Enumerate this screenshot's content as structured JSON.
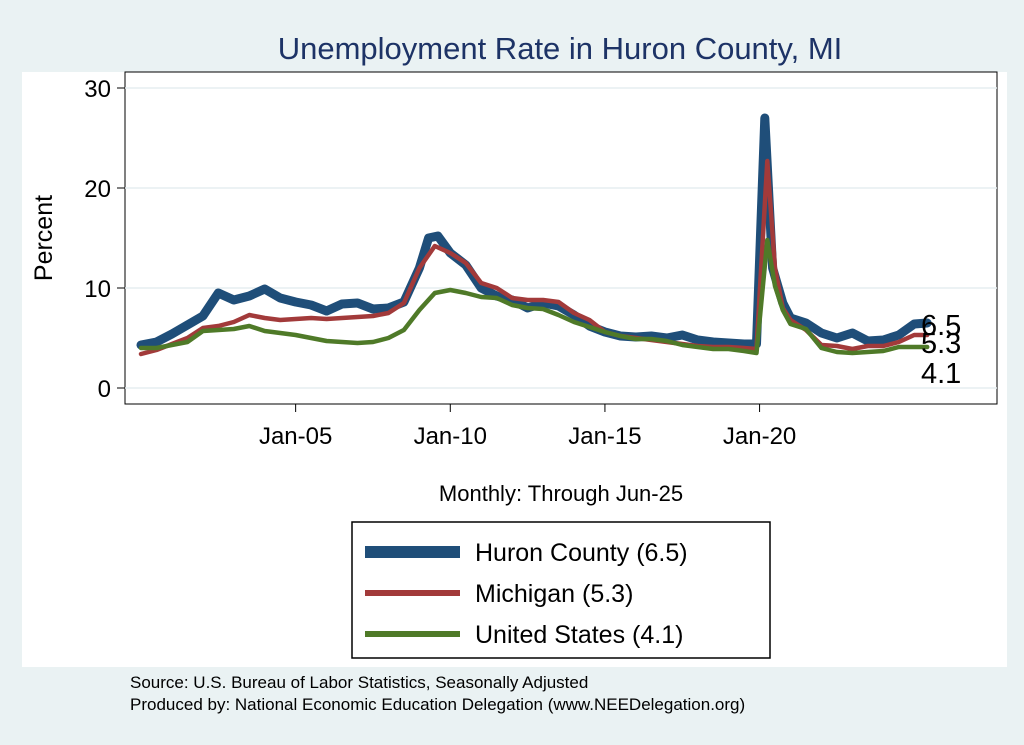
{
  "chart_data": {
    "type": "line",
    "title": "Unemployment Rate in Huron  County, MI",
    "ylabel": "Percent",
    "xlabel": "Monthly: Through Jun-25",
    "ylim": [
      0,
      30
    ],
    "yticks": [
      0,
      10,
      20,
      30
    ],
    "xlim": [
      2000.0,
      2028.0
    ],
    "xticks": [
      {
        "value": 2005.0,
        "label": "Jan-05"
      },
      {
        "value": 2010.0,
        "label": "Jan-10"
      },
      {
        "value": 2015.0,
        "label": "Jan-15"
      },
      {
        "value": 2020.0,
        "label": "Jan-20"
      }
    ],
    "grid": true,
    "legend_position": "bottom",
    "series": [
      {
        "name": "Huron  County",
        "legend_label": "Huron  County (6.5)",
        "end_label": "6.5",
        "color": "#1f4e79",
        "points": [
          [
            2000.0,
            4.3
          ],
          [
            2000.5,
            4.6
          ],
          [
            2001.0,
            5.4
          ],
          [
            2001.5,
            6.3
          ],
          [
            2002.0,
            7.2
          ],
          [
            2002.5,
            9.5
          ],
          [
            2003.0,
            8.8
          ],
          [
            2003.5,
            9.2
          ],
          [
            2004.0,
            9.9
          ],
          [
            2004.5,
            9.0
          ],
          [
            2005.0,
            8.6
          ],
          [
            2005.5,
            8.3
          ],
          [
            2006.0,
            7.7
          ],
          [
            2006.5,
            8.4
          ],
          [
            2007.0,
            8.5
          ],
          [
            2007.5,
            7.9
          ],
          [
            2008.0,
            8.0
          ],
          [
            2008.5,
            8.6
          ],
          [
            2009.0,
            12.0
          ],
          [
            2009.3,
            15.0
          ],
          [
            2009.6,
            15.2
          ],
          [
            2010.0,
            13.5
          ],
          [
            2010.5,
            12.3
          ],
          [
            2011.0,
            10.0
          ],
          [
            2011.5,
            9.2
          ],
          [
            2012.0,
            8.8
          ],
          [
            2012.5,
            8.0
          ],
          [
            2013.0,
            8.5
          ],
          [
            2013.5,
            8.2
          ],
          [
            2014.0,
            7.3
          ],
          [
            2014.5,
            6.2
          ],
          [
            2015.0,
            5.6
          ],
          [
            2015.5,
            5.2
          ],
          [
            2016.0,
            5.1
          ],
          [
            2016.5,
            5.2
          ],
          [
            2017.0,
            5.0
          ],
          [
            2017.5,
            5.3
          ],
          [
            2018.0,
            4.8
          ],
          [
            2018.5,
            4.6
          ],
          [
            2019.0,
            4.5
          ],
          [
            2019.5,
            4.4
          ],
          [
            2019.9,
            4.4
          ],
          [
            2020.17,
            27.0
          ],
          [
            2020.42,
            12.0
          ],
          [
            2020.75,
            8.5
          ],
          [
            2021.0,
            7.0
          ],
          [
            2021.5,
            6.5
          ],
          [
            2022.0,
            5.5
          ],
          [
            2022.5,
            5.0
          ],
          [
            2023.0,
            5.5
          ],
          [
            2023.5,
            4.7
          ],
          [
            2024.0,
            4.8
          ],
          [
            2024.5,
            5.3
          ],
          [
            2025.0,
            6.4
          ],
          [
            2025.42,
            6.5
          ]
        ]
      },
      {
        "name": "Michigan",
        "legend_label": "Michigan (5.3)",
        "end_label": "5.3",
        "color": "#a23a3a",
        "points": [
          [
            2000.0,
            3.4
          ],
          [
            2000.5,
            3.8
          ],
          [
            2001.0,
            4.4
          ],
          [
            2001.5,
            5.0
          ],
          [
            2002.0,
            6.0
          ],
          [
            2002.5,
            6.2
          ],
          [
            2003.0,
            6.6
          ],
          [
            2003.5,
            7.3
          ],
          [
            2004.0,
            7.0
          ],
          [
            2004.5,
            6.8
          ],
          [
            2005.0,
            6.9
          ],
          [
            2005.5,
            7.0
          ],
          [
            2006.0,
            6.9
          ],
          [
            2006.5,
            7.0
          ],
          [
            2007.0,
            7.1
          ],
          [
            2007.5,
            7.2
          ],
          [
            2008.0,
            7.5
          ],
          [
            2008.5,
            8.5
          ],
          [
            2009.0,
            12.0
          ],
          [
            2009.5,
            14.2
          ],
          [
            2010.0,
            13.5
          ],
          [
            2010.5,
            12.5
          ],
          [
            2011.0,
            10.5
          ],
          [
            2011.5,
            10.0
          ],
          [
            2012.0,
            9.0
          ],
          [
            2012.5,
            8.8
          ],
          [
            2013.0,
            8.8
          ],
          [
            2013.5,
            8.6
          ],
          [
            2014.0,
            7.5
          ],
          [
            2014.5,
            6.8
          ],
          [
            2015.0,
            5.6
          ],
          [
            2015.5,
            5.2
          ],
          [
            2016.0,
            5.0
          ],
          [
            2016.5,
            4.8
          ],
          [
            2017.0,
            4.6
          ],
          [
            2017.5,
            4.4
          ],
          [
            2018.0,
            4.2
          ],
          [
            2018.5,
            4.1
          ],
          [
            2019.0,
            4.1
          ],
          [
            2019.5,
            4.0
          ],
          [
            2019.9,
            3.9
          ],
          [
            2020.25,
            22.7
          ],
          [
            2020.5,
            12.0
          ],
          [
            2020.75,
            8.0
          ],
          [
            2021.0,
            6.8
          ],
          [
            2021.5,
            5.8
          ],
          [
            2022.0,
            4.3
          ],
          [
            2022.5,
            4.2
          ],
          [
            2023.0,
            3.9
          ],
          [
            2023.5,
            4.2
          ],
          [
            2024.0,
            4.2
          ],
          [
            2024.5,
            4.6
          ],
          [
            2025.0,
            5.3
          ],
          [
            2025.42,
            5.3
          ]
        ]
      },
      {
        "name": "United States",
        "legend_label": "United States (4.1)",
        "end_label": "4.1",
        "color": "#4f7a28",
        "points": [
          [
            2000.0,
            4.0
          ],
          [
            2000.5,
            4.0
          ],
          [
            2001.0,
            4.3
          ],
          [
            2001.5,
            4.6
          ],
          [
            2002.0,
            5.7
          ],
          [
            2002.5,
            5.8
          ],
          [
            2003.0,
            5.9
          ],
          [
            2003.5,
            6.2
          ],
          [
            2004.0,
            5.7
          ],
          [
            2004.5,
            5.5
          ],
          [
            2005.0,
            5.3
          ],
          [
            2005.5,
            5.0
          ],
          [
            2006.0,
            4.7
          ],
          [
            2006.5,
            4.6
          ],
          [
            2007.0,
            4.5
          ],
          [
            2007.5,
            4.6
          ],
          [
            2008.0,
            5.0
          ],
          [
            2008.5,
            5.8
          ],
          [
            2009.0,
            7.8
          ],
          [
            2009.5,
            9.5
          ],
          [
            2010.0,
            9.8
          ],
          [
            2010.5,
            9.5
          ],
          [
            2011.0,
            9.1
          ],
          [
            2011.5,
            9.0
          ],
          [
            2012.0,
            8.3
          ],
          [
            2012.5,
            8.0
          ],
          [
            2013.0,
            7.9
          ],
          [
            2013.5,
            7.3
          ],
          [
            2014.0,
            6.6
          ],
          [
            2014.5,
            6.1
          ],
          [
            2015.0,
            5.6
          ],
          [
            2015.5,
            5.2
          ],
          [
            2016.0,
            4.9
          ],
          [
            2016.5,
            4.9
          ],
          [
            2017.0,
            4.7
          ],
          [
            2017.5,
            4.3
          ],
          [
            2018.0,
            4.1
          ],
          [
            2018.5,
            3.9
          ],
          [
            2019.0,
            3.9
          ],
          [
            2019.5,
            3.7
          ],
          [
            2019.9,
            3.5
          ],
          [
            2020.25,
            14.8
          ],
          [
            2020.5,
            10.2
          ],
          [
            2020.75,
            7.8
          ],
          [
            2021.0,
            6.4
          ],
          [
            2021.5,
            5.9
          ],
          [
            2022.0,
            4.0
          ],
          [
            2022.5,
            3.6
          ],
          [
            2023.0,
            3.5
          ],
          [
            2023.5,
            3.6
          ],
          [
            2024.0,
            3.7
          ],
          [
            2024.5,
            4.1
          ],
          [
            2025.0,
            4.1
          ],
          [
            2025.42,
            4.1
          ]
        ]
      }
    ]
  },
  "source_line": "Source: U.S. Bureau of Labor Statistics, Seasonally Adjusted",
  "produced_line": "Produced by: National Economic Education Delegation (www.NEEDelegation.org)"
}
